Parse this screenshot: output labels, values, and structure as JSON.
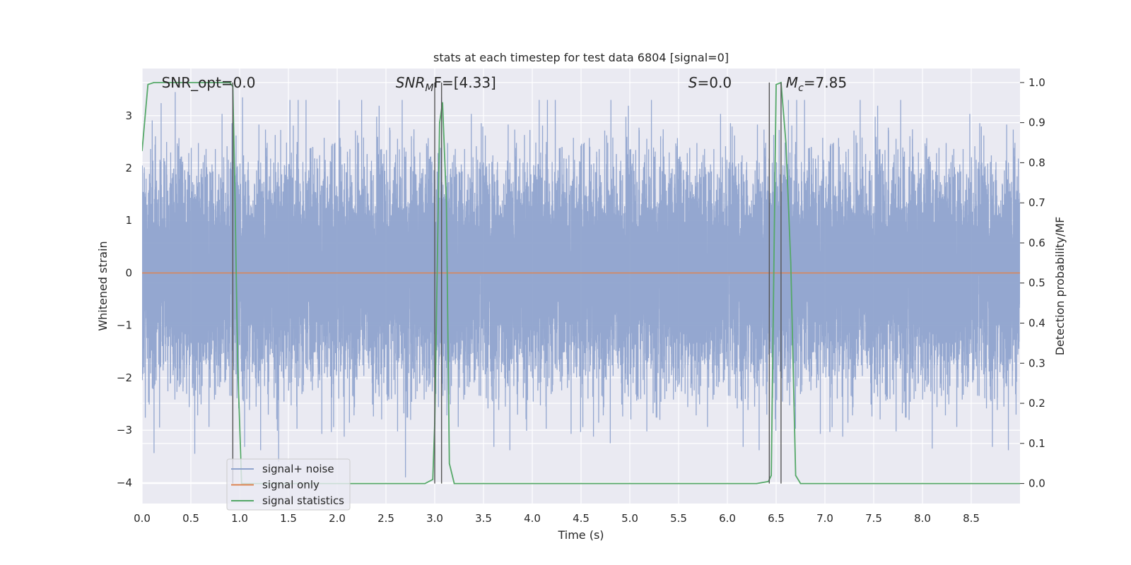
{
  "chart_data": {
    "type": "line",
    "title": "stats at each timestep for test data 6804 [signal=0]",
    "xlabel": "Time (s)",
    "ylabel": "Whitened strain",
    "y2label": "Detection probability/MF",
    "xlim": [
      0.0,
      9.0
    ],
    "ylim": [
      -4.4,
      3.9
    ],
    "y2lim": [
      -0.05,
      1.035
    ],
    "x_ticks": [
      0.0,
      0.5,
      1.0,
      1.5,
      2.0,
      2.5,
      3.0,
      3.5,
      4.0,
      4.5,
      5.0,
      5.5,
      6.0,
      6.5,
      7.0,
      7.5,
      8.0,
      8.5
    ],
    "x_tick_labels": [
      "0.0",
      "0.5",
      "1.0",
      "1.5",
      "2.0",
      "2.5",
      "3.0",
      "3.5",
      "4.0",
      "4.5",
      "5.0",
      "5.5",
      "6.0",
      "6.5",
      "7.0",
      "7.5",
      "8.0",
      "8.5"
    ],
    "y_ticks": [
      3,
      2,
      1,
      0,
      -1,
      -2,
      -3,
      -4
    ],
    "y_tick_labels": [
      "3",
      "2",
      "1",
      "0",
      "−1",
      "−2",
      "−3",
      "−4"
    ],
    "y2_ticks": [
      1.0,
      0.9,
      0.8,
      0.7,
      0.6,
      0.5,
      0.4,
      0.3,
      0.2,
      0.1,
      0.0
    ],
    "y2_tick_labels": [
      "1.0",
      "0.9",
      "0.8",
      "0.7",
      "0.6",
      "0.5",
      "0.4",
      "0.3",
      "0.2",
      "0.1",
      "0.0"
    ],
    "grid": true,
    "legend_location": "lower left",
    "series": [
      {
        "name": "signal+ noise",
        "color": "#8fa3cd",
        "axis": "left",
        "kind": "noise",
        "sample_rate_hz": 2048,
        "duration_s": 9.0,
        "std": 1.0,
        "extremes": [
          {
            "x": 0.34,
            "y": 3.45
          },
          {
            "x": 1.03,
            "y": 3.35
          },
          {
            "x": 2.02,
            "y": 3.3
          },
          {
            "x": 3.07,
            "y": 3.35
          },
          {
            "x": 0.54,
            "y": -3.45
          },
          {
            "x": 2.7,
            "y": -3.9
          },
          {
            "x": 4.8,
            "y": -3.25
          },
          {
            "x": 8.1,
            "y": -3.35
          },
          {
            "x": 1.4,
            "y": -3.6
          }
        ]
      },
      {
        "name": "signal only",
        "color": "#dd8452",
        "axis": "left",
        "x": [
          0.0,
          9.0
        ],
        "y": [
          0.0,
          0.0
        ]
      },
      {
        "name": "signal statistics",
        "color": "#55a868",
        "axis": "right",
        "x": [
          0.0,
          0.06,
          0.12,
          0.2,
          0.3,
          0.5,
          0.7,
          0.85,
          0.9,
          0.93,
          0.95,
          0.98,
          1.02,
          1.1,
          1.5,
          2.0,
          2.5,
          2.9,
          2.98,
          3.0,
          3.05,
          3.08,
          3.12,
          3.15,
          3.2,
          3.5,
          4.0,
          5.0,
          6.0,
          6.3,
          6.42,
          6.45,
          6.5,
          6.55,
          6.6,
          6.65,
          6.7,
          6.75,
          7.0,
          8.0,
          9.0
        ],
        "y": [
          0.83,
          0.995,
          1.0,
          1.0,
          1.0,
          1.0,
          1.0,
          1.0,
          1.0,
          0.99,
          0.75,
          0.3,
          0.0,
          0.0,
          0.0,
          0.0,
          0.0,
          0.0,
          0.01,
          0.15,
          0.9,
          0.95,
          0.7,
          0.05,
          0.0,
          0.0,
          0.0,
          0.0,
          0.0,
          0.0,
          0.005,
          0.02,
          0.995,
          1.0,
          0.85,
          0.55,
          0.02,
          0.0,
          0.0,
          0.0,
          0.0
        ]
      }
    ],
    "vertical_markers": [
      {
        "x": 0.93,
        "color": "#555555"
      },
      {
        "x": 3.0,
        "color": "#555555"
      },
      {
        "x": 3.07,
        "color": "#555555"
      },
      {
        "x": 6.43,
        "color": "#555555"
      },
      {
        "x": 6.55,
        "color": "#555555"
      }
    ],
    "annotations": [
      {
        "text": "SNR_opt=0.0",
        "anchor_x": 0.2
      },
      {
        "text": "SNR_MF=[4.33]",
        "anchor_x": 2.6,
        "math": "SNR",
        "sub": "M",
        "rest": "F=[4.33]"
      },
      {
        "text": "S=0.0",
        "anchor_x": 5.6,
        "math": "S",
        "rest": "=0.0"
      },
      {
        "text": "M_c=7.85",
        "anchor_x": 6.6,
        "math": "M",
        "sub": "c",
        "rest": "=7.85"
      }
    ]
  }
}
